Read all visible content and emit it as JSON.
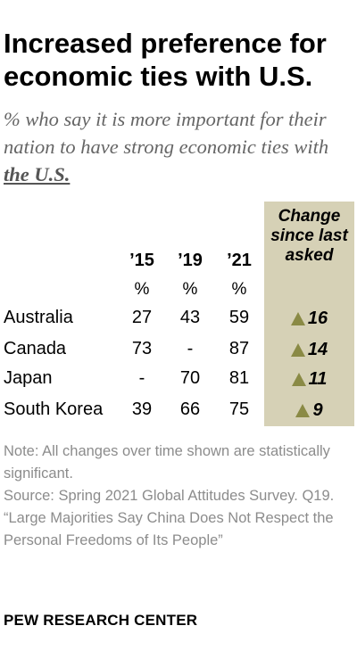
{
  "title": "Increased preference for economic ties with U.S.",
  "subtitle": {
    "prefix": "% who say it is more important for their nation to have strong economic ties with ",
    "emphasis": "the U.S."
  },
  "columns": {
    "years": [
      "’15",
      "’19",
      "’21"
    ],
    "unit": "%",
    "change_header": "Change since last asked"
  },
  "chart_data": {
    "type": "table",
    "title": "Increased preference for economic ties with U.S.",
    "unit": "%",
    "columns": [
      "’15",
      "’19",
      "’21"
    ],
    "change_label": "Change since last asked",
    "rows": [
      {
        "country": "Australia",
        "values": [
          "27",
          "43",
          "59"
        ],
        "change": "16",
        "direction": "up"
      },
      {
        "country": "Canada",
        "values": [
          "73",
          "-",
          "87"
        ],
        "change": "14",
        "direction": "up"
      },
      {
        "country": "Japan",
        "values": [
          "-",
          "70",
          "81"
        ],
        "change": "11",
        "direction": "up"
      },
      {
        "country": "South Korea",
        "values": [
          "39",
          "66",
          "75"
        ],
        "change": "9",
        "direction": "up"
      }
    ]
  },
  "notes": [
    "Note: All changes over time shown are statistically significant.",
    "Source: Spring 2021 Global Attitudes Survey. Q19.",
    "“Large Majorities Say China Does Not Respect the Personal Freedoms of Its People”"
  ],
  "brand": "PEW RESEARCH CENTER",
  "colors": {
    "change_panel": "#d6d1b6",
    "triangle": "#8a8a45",
    "notes_text": "#8c8c8c",
    "subtitle_text": "#666666"
  }
}
